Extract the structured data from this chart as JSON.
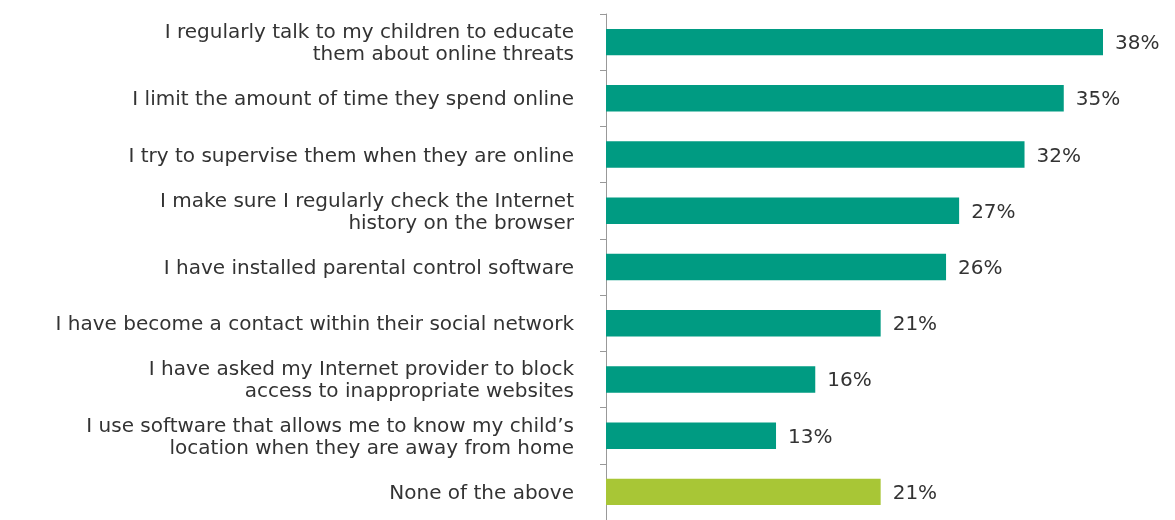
{
  "chart_data": {
    "type": "bar",
    "orientation": "horizontal",
    "categories": [
      "I regularly talk to my children to educate\nthem about online threats",
      "I limit the amount of time they spend online",
      "I try to supervise them when they are online",
      "I make sure I regularly check the Internet\nhistory on the browser",
      "I have installed parental control software",
      "I have become a contact within their social network",
      "I have asked my Internet provider to block\naccess to inappropriate websites",
      "I use software that allows me to know my child’s\nlocation when they are away from home",
      "None of the above"
    ],
    "values": [
      38,
      35,
      32,
      27,
      26,
      21,
      16,
      13,
      21
    ],
    "value_labels": [
      "38%",
      "35%",
      "32%",
      "27%",
      "26%",
      "21%",
      "16%",
      "13%",
      "21%"
    ],
    "colors": [
      "#009b82",
      "#009b82",
      "#009b82",
      "#009b82",
      "#009b82",
      "#009b82",
      "#009b82",
      "#009b82",
      "#a8c636"
    ],
    "grid": false
  }
}
